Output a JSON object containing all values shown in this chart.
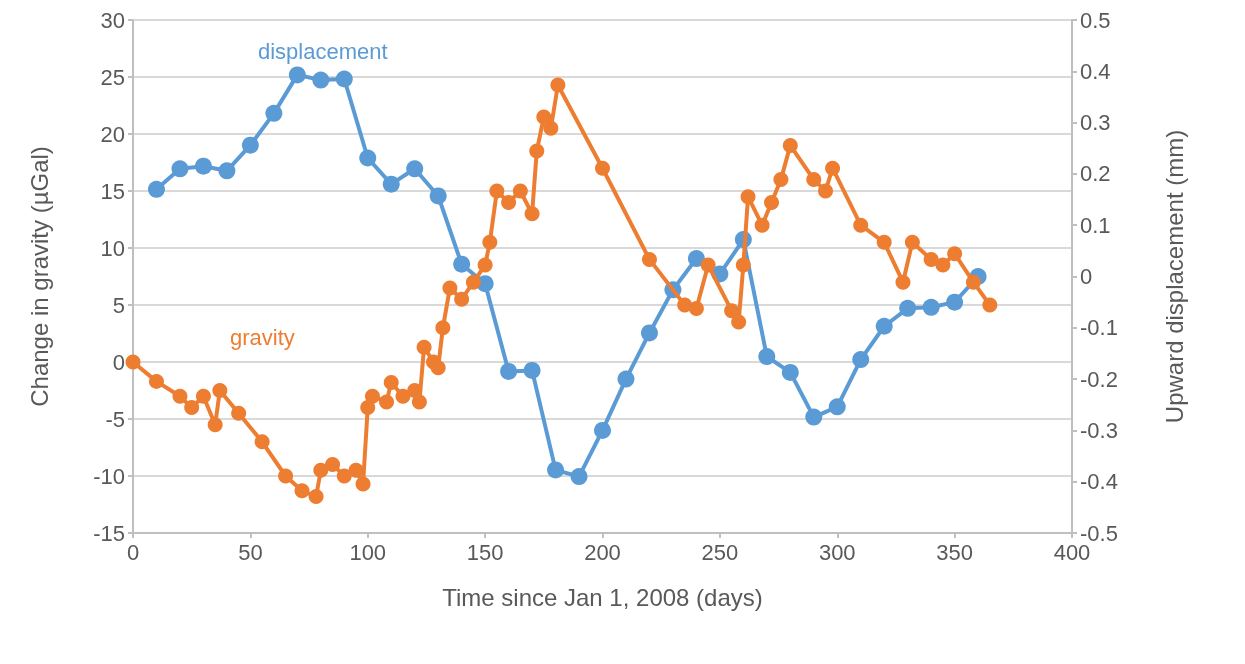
{
  "chart_data": {
    "type": "line",
    "xlabel": "Time since Jan 1, 2008 (days)",
    "ylabel": "Change in gravity (µGal)",
    "y2label": "Upward displacement (mm)",
    "xlim": [
      0,
      400
    ],
    "xticks": [
      0,
      50,
      100,
      150,
      200,
      250,
      300,
      350,
      400
    ],
    "ylim": [
      -15,
      30
    ],
    "yticks": [
      -15,
      -10,
      -5,
      0,
      5,
      10,
      15,
      20,
      25,
      30
    ],
    "y2lim": [
      -0.5,
      0.5
    ],
    "y2ticks": [
      -0.5,
      -0.4,
      -0.3,
      -0.2,
      -0.1,
      0,
      0.1,
      0.2,
      0.3,
      0.4,
      0.5
    ],
    "grid": "y",
    "legend": false,
    "marker": "circle",
    "line_style": "solid",
    "series": [
      {
        "name": "displacement",
        "color": "#5b9bd5",
        "axis": "y2",
        "x": [
          10,
          20,
          30,
          40,
          50,
          60,
          70,
          80,
          90,
          100,
          110,
          120,
          130,
          140,
          150,
          160,
          170,
          180,
          190,
          200,
          210,
          220,
          230,
          240,
          250,
          260,
          270,
          280,
          290,
          300,
          310,
          320,
          330,
          340,
          350,
          360
        ],
        "values": [
          0.17,
          0.21,
          0.215,
          0.206,
          0.256,
          0.318,
          0.393,
          0.383,
          0.385,
          0.231,
          0.18,
          0.21,
          0.157,
          0.024,
          -0.014,
          -0.185,
          -0.183,
          -0.377,
          -0.39,
          -0.3,
          -0.2,
          -0.11,
          -0.026,
          0.035,
          0.005,
          0.072,
          -0.156,
          -0.187,
          -0.274,
          -0.254,
          -0.162,
          -0.097,
          -0.062,
          -0.06,
          -0.05,
          0
        ]
      },
      {
        "name": "gravity",
        "color": "#ed7d31",
        "x": [
          0,
          10,
          20,
          25,
          30,
          35,
          37,
          45,
          55,
          65,
          72,
          78,
          80,
          85,
          90,
          95,
          98,
          100,
          102,
          108,
          110,
          115,
          120,
          122,
          124,
          128,
          130,
          132,
          135,
          140,
          145,
          150,
          152,
          155,
          160,
          165,
          170,
          172,
          175,
          178,
          181,
          200,
          220,
          235,
          240,
          245,
          255,
          258,
          260,
          262,
          268,
          272,
          276,
          280,
          290,
          295,
          298,
          310,
          320,
          328,
          332,
          340,
          345,
          350,
          358,
          365
        ],
        "values": [
          0,
          -1.7,
          -3,
          -4,
          -3,
          -5.5,
          -2.5,
          -4.5,
          -7,
          -10,
          -11.3,
          -11.8,
          -9.5,
          -9,
          -10,
          -9.5,
          -10.7,
          -4,
          -3,
          -3.5,
          -1.8,
          -3,
          -2.5,
          -3.5,
          1.3,
          0,
          -0.5,
          3,
          6.5,
          5.5,
          7,
          8.5,
          10.5,
          15,
          14,
          15,
          13,
          18.5,
          21.5,
          20.5,
          24.3,
          17,
          9,
          5,
          4.7,
          8.5,
          4.5,
          3.5,
          8.5,
          14.5,
          12,
          14,
          16,
          19,
          16,
          15,
          17,
          12,
          10.5,
          7,
          10.5,
          9,
          8.5,
          9.5,
          7,
          5
        ]
      }
    ]
  }
}
